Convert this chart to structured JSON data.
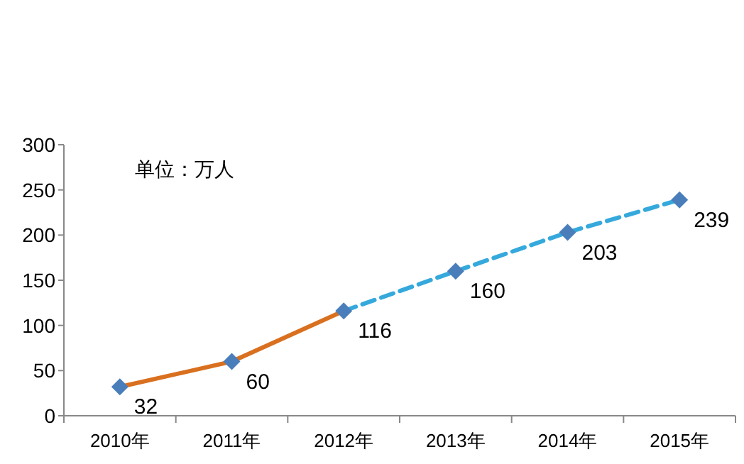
{
  "chart_data": {
    "type": "line",
    "categories": [
      "2010年",
      "2011年",
      "2012年",
      "2013年",
      "2014年",
      "2015年"
    ],
    "series": [
      {
        "color": "#d9701f",
        "line_style": "solid",
        "marker": "none",
        "values": [
          32,
          60,
          116,
          null,
          null,
          null
        ]
      },
      {
        "color": "#35a9dc",
        "line_style": "dashed",
        "marker": "none",
        "values": [
          null,
          null,
          116,
          160,
          203,
          239
        ]
      },
      {
        "type": "scatter",
        "color": "#4a7ebb",
        "marker": "diamond",
        "values": [
          32,
          60,
          116,
          160,
          203,
          239
        ],
        "value_labels": [
          "32",
          "60",
          "116",
          "160",
          "203",
          "239"
        ]
      }
    ],
    "ylim": [
      0,
      300
    ],
    "yticks": [
      0,
      50,
      100,
      150,
      200,
      250,
      300
    ],
    "annotations": [
      "单位：万人"
    ],
    "grid": false
  }
}
